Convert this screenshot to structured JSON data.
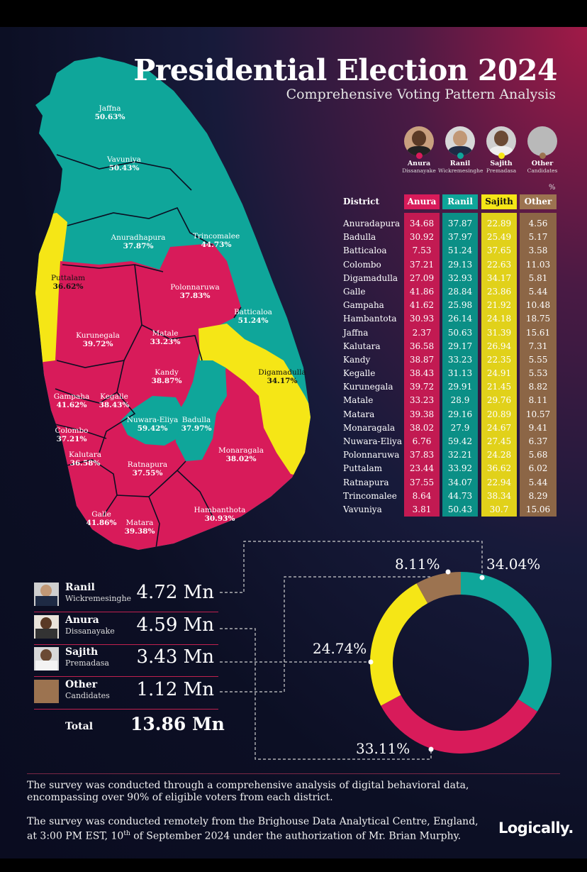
{
  "header": {
    "title": "Presidential Election 2024",
    "subtitle": "Comprehensive Voting Pattern Analysis"
  },
  "candidates": [
    {
      "first": "Anura",
      "last": "Dissanayake",
      "color": "#d81b5a"
    },
    {
      "first": "Ranil",
      "last": "Wickremesinghe",
      "color": "#0fa69a"
    },
    {
      "first": "Sajith",
      "last": "Premadasa",
      "color": "#f5e616"
    },
    {
      "first": "Other",
      "last": "Candidates",
      "color": "#9c7350"
    }
  ],
  "table": {
    "unit": "%",
    "district_header": "District",
    "column_headers": [
      "Anura",
      "Ranil",
      "Sajith",
      "Other"
    ],
    "rows": [
      {
        "district": "Anuradapura",
        "values": [
          "34.68",
          "37.87",
          "22.89",
          "4.56"
        ]
      },
      {
        "district": "Badulla",
        "values": [
          "30.92",
          "37.97",
          "25.49",
          "5.17"
        ]
      },
      {
        "district": "Batticaloa",
        "values": [
          "7.53",
          "51.24",
          "37.65",
          "3.58"
        ]
      },
      {
        "district": "Colombo",
        "values": [
          "37.21",
          "29.13",
          "22.63",
          "11.03"
        ]
      },
      {
        "district": "Digamadulla",
        "values": [
          "27.09",
          "32.93",
          "34.17",
          "5.81"
        ]
      },
      {
        "district": "Galle",
        "values": [
          "41.86",
          "28.84",
          "23.86",
          "5.44"
        ]
      },
      {
        "district": "Gampaha",
        "values": [
          "41.62",
          "25.98",
          "21.92",
          "10.48"
        ]
      },
      {
        "district": "Hambantota",
        "values": [
          "30.93",
          "26.14",
          "24.18",
          "18.75"
        ]
      },
      {
        "district": "Jaffna",
        "values": [
          "2.37",
          "50.63",
          "31.39",
          "15.61"
        ]
      },
      {
        "district": "Kalutara",
        "values": [
          "36.58",
          "29.17",
          "26.94",
          "7.31"
        ]
      },
      {
        "district": "Kandy",
        "values": [
          "38.87",
          "33.23",
          "22.35",
          "5.55"
        ]
      },
      {
        "district": "Kegalle",
        "values": [
          "38.43",
          "31.13",
          "24.91",
          "5.53"
        ]
      },
      {
        "district": "Kurunegala",
        "values": [
          "39.72",
          "29.91",
          "21.45",
          "8.82"
        ]
      },
      {
        "district": "Matale",
        "values": [
          "33.23",
          "28.9",
          "29.76",
          "8.11"
        ]
      },
      {
        "district": "Matara",
        "values": [
          "39.38",
          "29.16",
          "20.89",
          "10.57"
        ]
      },
      {
        "district": "Monaragala",
        "values": [
          "38.02",
          "27.9",
          "24.67",
          "9.41"
        ]
      },
      {
        "district": "Nuwara-Eliya",
        "values": [
          "6.76",
          "59.42",
          "27.45",
          "6.37"
        ]
      },
      {
        "district": "Polonnaruwa",
        "values": [
          "37.83",
          "32.21",
          "24.28",
          "5.68"
        ]
      },
      {
        "district": "Puttalam",
        "values": [
          "23.44",
          "33.92",
          "36.62",
          "6.02"
        ]
      },
      {
        "district": "Ratnapura",
        "values": [
          "37.55",
          "34.07",
          "22.94",
          "5.44"
        ]
      },
      {
        "district": "Trincomalee",
        "values": [
          "8.64",
          "44.73",
          "38.34",
          "8.29"
        ]
      },
      {
        "district": "Vavuniya",
        "values": [
          "3.81",
          "50.43",
          "30.7",
          "15.06"
        ]
      }
    ]
  },
  "map_labels": [
    {
      "name": "Jaffna",
      "pct": "50.63%"
    },
    {
      "name": "Vavuniya",
      "pct": "50.43%"
    },
    {
      "name": "Anuradhapura",
      "pct": "37.87%"
    },
    {
      "name": "Trincomalee",
      "pct": "44.73%"
    },
    {
      "name": "Puttalam",
      "pct": "36.62%"
    },
    {
      "name": "Polonnaruwa",
      "pct": "37.83%"
    },
    {
      "name": "Batticaloa",
      "pct": "51.24%"
    },
    {
      "name": "Kurunegala",
      "pct": "39.72%"
    },
    {
      "name": "Matale",
      "pct": "33.23%"
    },
    {
      "name": "Kandy",
      "pct": "38.87%"
    },
    {
      "name": "Digamadulla",
      "pct": "34.17%"
    },
    {
      "name": "Gampaha",
      "pct": "41.62%"
    },
    {
      "name": "Kegalle",
      "pct": "38.43%"
    },
    {
      "name": "Nuwara-Eliya",
      "pct": "59.42%"
    },
    {
      "name": "Badulla",
      "pct": "37.97%"
    },
    {
      "name": "Colombo",
      "pct": "37.21%"
    },
    {
      "name": "Kalutara",
      "pct": "36.58%"
    },
    {
      "name": "Ratnapura",
      "pct": "37.55%"
    },
    {
      "name": "Monaragala",
      "pct": "38.02%"
    },
    {
      "name": "Galle",
      "pct": "41.86%"
    },
    {
      "name": "Matara",
      "pct": "39.38%"
    },
    {
      "name": "Hambanthota",
      "pct": "30.93%"
    }
  ],
  "vote_totals": [
    {
      "first": "Ranil",
      "last": "Wickremesinghe",
      "value": "4.72 Mn"
    },
    {
      "first": "Anura",
      "last": "Dissanayake",
      "value": "4.59 Mn"
    },
    {
      "first": "Sajith",
      "last": "Premadasa",
      "value": "3.43 Mn"
    },
    {
      "first": "Other",
      "last": "Candidates",
      "value": "1.12 Mn"
    }
  ],
  "total": {
    "label": "Total",
    "value": "13.86 Mn"
  },
  "chart_data": [
    {
      "type": "table",
      "title": "",
      "columns": [
        "District",
        "Anura",
        "Ranil",
        "Sajith",
        "Other"
      ],
      "unit": "%",
      "rows": [
        [
          "Anuradapura",
          34.68,
          37.87,
          22.89,
          4.56
        ],
        [
          "Badulla",
          30.92,
          37.97,
          25.49,
          5.17
        ],
        [
          "Batticaloa",
          7.53,
          51.24,
          37.65,
          3.58
        ],
        [
          "Colombo",
          37.21,
          29.13,
          22.63,
          11.03
        ],
        [
          "Digamadulla",
          27.09,
          32.93,
          34.17,
          5.81
        ],
        [
          "Galle",
          41.86,
          28.84,
          23.86,
          5.44
        ],
        [
          "Gampaha",
          41.62,
          25.98,
          21.92,
          10.48
        ],
        [
          "Hambantota",
          30.93,
          26.14,
          24.18,
          18.75
        ],
        [
          "Jaffna",
          2.37,
          50.63,
          31.39,
          15.61
        ],
        [
          "Kalutara",
          36.58,
          29.17,
          26.94,
          7.31
        ],
        [
          "Kandy",
          38.87,
          33.23,
          22.35,
          5.55
        ],
        [
          "Kegalle",
          38.43,
          31.13,
          24.91,
          5.53
        ],
        [
          "Kurunegala",
          39.72,
          29.91,
          21.45,
          8.82
        ],
        [
          "Matale",
          33.23,
          28.9,
          29.76,
          8.11
        ],
        [
          "Matara",
          39.38,
          29.16,
          20.89,
          10.57
        ],
        [
          "Monaragala",
          38.02,
          27.9,
          24.67,
          9.41
        ],
        [
          "Nuwara-Eliya",
          6.76,
          59.42,
          27.45,
          6.37
        ],
        [
          "Polonnaruwa",
          37.83,
          32.21,
          24.28,
          5.68
        ],
        [
          "Puttalam",
          23.44,
          33.92,
          36.62,
          6.02
        ],
        [
          "Ratnapura",
          37.55,
          34.07,
          22.94,
          5.44
        ],
        [
          "Trincomalee",
          8.64,
          44.73,
          38.34,
          8.29
        ],
        [
          "Vavuniya",
          3.81,
          50.43,
          30.7,
          15.06
        ]
      ]
    },
    {
      "type": "pie",
      "title": "",
      "categories": [
        "Ranil",
        "Anura",
        "Sajith",
        "Other"
      ],
      "values": [
        34.04,
        33.11,
        24.74,
        8.11
      ],
      "labels": [
        "34.04%",
        "33.11%",
        "24.74%",
        "8.11%"
      ],
      "colors": [
        "#0fa69a",
        "#d81b5a",
        "#f5e616",
        "#9c7350"
      ]
    }
  ],
  "footer": {
    "para1": "The survey was conducted through a comprehensive analysis of digital behavioral data, encompassing over 90% of eligible voters from each district.",
    "para2_a": "The survey was conducted remotely from the Brighouse Data Analytical Centre, England,",
    "para2_b": "at 3:00 PM EST, 10",
    "para2_sup": "th",
    "para2_c": " of September 2024 under the authorization of Mr. Brian Murphy.",
    "logo": "Logically."
  }
}
